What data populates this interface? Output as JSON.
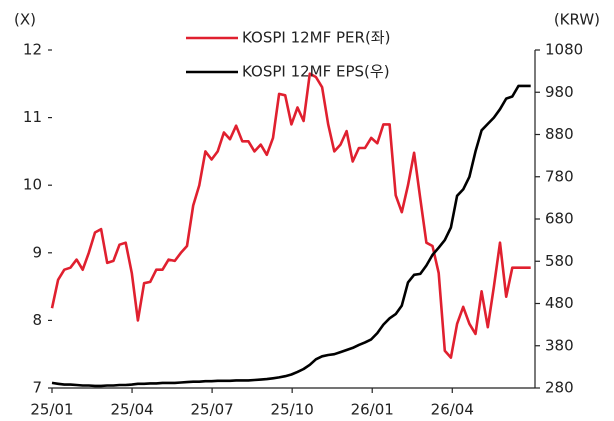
{
  "chart_data": {
    "type": "line",
    "y_axis_label": "(X)",
    "y2_axis_label": "(KRW)",
    "x": [
      0,
      0.23,
      0.46,
      0.69,
      0.92,
      1.15,
      1.38,
      1.61,
      1.84,
      2.07,
      2.3,
      2.53,
      2.76,
      2.99,
      3.22,
      3.45,
      3.68,
      3.91,
      4.14,
      4.37,
      4.6,
      4.83,
      5.06,
      5.29,
      5.52,
      5.75,
      5.98,
      6.21,
      6.44,
      6.67,
      6.9,
      7.13,
      7.36,
      7.59,
      7.82,
      8.05,
      8.28,
      8.51,
      8.74,
      8.97,
      9.2,
      9.43,
      9.66,
      9.89,
      10.12,
      10.35,
      10.58,
      10.81,
      11.04,
      11.27,
      11.5,
      11.73,
      11.96,
      12.19,
      12.42,
      12.65,
      12.88,
      13.11,
      13.34,
      13.57,
      13.8,
      14.03,
      14.26,
      14.49,
      14.72,
      14.95,
      15.18,
      15.41,
      15.64,
      15.87,
      16.1,
      16.33,
      16.56,
      16.79,
      17.02,
      17.25,
      17.48,
      17.71,
      17.94
    ],
    "series": [
      {
        "name": "KOSPI 12MF PER(좌)",
        "color": "#e0202f",
        "values": [
          8.18,
          8.6,
          8.75,
          8.78,
          8.9,
          8.75,
          9.0,
          9.3,
          9.35,
          8.85,
          8.88,
          9.12,
          9.15,
          8.7,
          8.0,
          8.55,
          8.57,
          8.75,
          8.75,
          8.9,
          8.88,
          9.0,
          9.1,
          9.7,
          10.0,
          10.5,
          10.38,
          10.5,
          10.78,
          10.68,
          10.88,
          10.65,
          10.65,
          10.5,
          10.6,
          10.45,
          10.7,
          11.35,
          11.33,
          10.9,
          11.15,
          10.95,
          11.65,
          11.6,
          11.45,
          10.9,
          10.5,
          10.6,
          10.8,
          10.35,
          10.55,
          10.55,
          10.7,
          10.62,
          10.9,
          10.9,
          9.85,
          9.6,
          10.0,
          10.48,
          9.8,
          9.15,
          9.1,
          8.7,
          7.55,
          7.45,
          7.95,
          8.2,
          7.95,
          7.8,
          8.43,
          7.9,
          8.5,
          9.15,
          8.35,
          8.78,
          8.78,
          8.78,
          8.78
        ]
      },
      {
        "name": "KOSPI 12MF EPS(우)",
        "color": "#000000",
        "axis": "y2",
        "values": [
          292,
          290,
          288,
          288,
          287,
          286,
          286,
          285,
          285,
          286,
          286,
          287,
          287,
          288,
          290,
          290,
          291,
          291,
          292,
          292,
          292,
          293,
          294,
          295,
          295,
          296,
          296,
          297,
          297,
          297,
          298,
          298,
          298,
          299,
          300,
          301,
          303,
          305,
          308,
          312,
          318,
          325,
          335,
          348,
          355,
          358,
          360,
          365,
          370,
          375,
          382,
          388,
          395,
          410,
          430,
          445,
          455,
          475,
          530,
          548,
          550,
          570,
          595,
          612,
          630,
          660,
          735,
          750,
          780,
          840,
          890,
          905,
          920,
          940,
          965,
          970,
          995,
          995,
          995
        ]
      }
    ],
    "xlim": [
      0,
      18.1
    ],
    "xticks": [
      {
        "value": 0,
        "label": "25/01"
      },
      {
        "value": 3,
        "label": "25/04"
      },
      {
        "value": 6,
        "label": "25/07"
      },
      {
        "value": 9,
        "label": "25/10"
      },
      {
        "value": 12,
        "label": "26/01"
      },
      {
        "value": 15,
        "label": "26/04"
      }
    ],
    "ylim": [
      7,
      12
    ],
    "yticks": [
      7,
      8,
      9,
      10,
      11,
      12
    ],
    "y2lim": [
      280,
      1080
    ],
    "y2ticks": [
      280,
      380,
      480,
      580,
      680,
      780,
      880,
      980,
      1080
    ],
    "grid": false
  }
}
